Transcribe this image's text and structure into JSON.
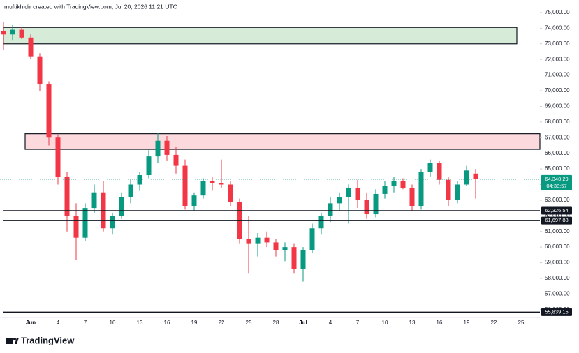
{
  "header": "muftikhidir created with TradingView.com, Jul 20, 2026 11:21 UTC",
  "footer": "TradingView",
  "chart_data": {
    "type": "candlestick",
    "categories": [
      null,
      null,
      null,
      "Jun",
      null,
      null,
      "4",
      null,
      null,
      "7",
      null,
      null,
      "10",
      null,
      null,
      "13",
      null,
      null,
      "16",
      null,
      null,
      "19",
      null,
      null,
      "22",
      null,
      null,
      "25",
      null,
      null,
      "28",
      null,
      null,
      "Jul",
      null,
      null,
      "4",
      null,
      null,
      "7",
      null,
      null,
      "10",
      null,
      null,
      "13",
      null,
      null,
      "16",
      null,
      null,
      "19",
      null,
      null,
      "22",
      null,
      null,
      "25"
    ],
    "open": [
      73800,
      73600,
      73900,
      73400,
      72200,
      70400,
      67000,
      64500,
      62000,
      60600,
      62500,
      63500,
      61200,
      62000,
      63200,
      64000,
      64600,
      65800,
      66800,
      65900,
      65200,
      62600,
      63300,
      64200,
      64100,
      64000,
      62900,
      60500,
      60200,
      60600,
      60300,
      59800,
      60000,
      58600,
      59800,
      61200,
      62000,
      62800,
      63200,
      63800,
      63000,
      62100,
      63400,
      63900,
      64200,
      63800,
      62600,
      64800,
      65400,
      64300,
      63000,
      64000,
      64700,
      null,
      null,
      null,
      null,
      null
    ],
    "high": [
      74400,
      74200,
      74100,
      73600,
      72400,
      70600,
      67200,
      64800,
      62800,
      62800,
      64000,
      64200,
      62200,
      63500,
      64300,
      64800,
      66200,
      67300,
      67100,
      66400,
      65600,
      63500,
      64400,
      64500,
      65600,
      64200,
      63100,
      62000,
      60900,
      61000,
      60500,
      60300,
      60200,
      60000,
      61500,
      62200,
      63200,
      63500,
      64000,
      64300,
      63500,
      63700,
      64200,
      64500,
      64400,
      64000,
      65000,
      65600,
      65500,
      64500,
      64200,
      65200,
      65000,
      null,
      null,
      null,
      null,
      null
    ],
    "low": [
      72600,
      73200,
      73300,
      72000,
      70000,
      66500,
      64000,
      61000,
      59200,
      60400,
      62200,
      61000,
      60800,
      61800,
      62800,
      63600,
      64400,
      65400,
      65500,
      64700,
      62400,
      62300,
      63100,
      63600,
      63800,
      62600,
      60200,
      58300,
      59400,
      60000,
      59400,
      59100,
      58300,
      57800,
      59600,
      60800,
      61600,
      62300,
      61500,
      62500,
      61800,
      61900,
      63100,
      63500,
      63700,
      62300,
      62400,
      64500,
      64000,
      62600,
      62800,
      63900,
      63100,
      null,
      null,
      null,
      null,
      null
    ],
    "close": [
      73600,
      73900,
      73400,
      72200,
      70400,
      67000,
      64500,
      62000,
      60600,
      62500,
      63500,
      61200,
      62000,
      63200,
      64000,
      64600,
      65800,
      66800,
      65900,
      65200,
      62600,
      63300,
      64200,
      64100,
      64000,
      62900,
      60500,
      60200,
      60600,
      60300,
      59800,
      60000,
      58600,
      59800,
      61200,
      62000,
      62800,
      63200,
      63800,
      63000,
      62100,
      63400,
      63900,
      64200,
      63800,
      62600,
      64800,
      65400,
      64300,
      63000,
      64000,
      64900,
      64340.29,
      null,
      null,
      null,
      null,
      null
    ],
    "up_color": "#089981",
    "down_color": "#f23645",
    "ylim": [
      55500,
      75800
    ],
    "yticks": [
      {
        "value": 56000,
        "label": "56,000.00"
      },
      {
        "value": 57000,
        "label": "57,000.00"
      },
      {
        "value": 58000,
        "label": "58,000.00"
      },
      {
        "value": 59000,
        "label": "59,000.00"
      },
      {
        "value": 60000,
        "label": "60,000.00"
      },
      {
        "value": 61000,
        "label": "61,000.00"
      },
      {
        "value": 62000,
        "label": "62,000.00"
      },
      {
        "value": 63000,
        "label": "63,000.00"
      },
      {
        "value": 64000,
        "label": "64,000.00"
      },
      {
        "value": 65000,
        "label": "65,000.00"
      },
      {
        "value": 66000,
        "label": "66,000.00"
      },
      {
        "value": 67000,
        "label": "67,000.00"
      },
      {
        "value": 68000,
        "label": "68,000.00"
      },
      {
        "value": 69000,
        "label": "69,000.00"
      },
      {
        "value": 70000,
        "label": "70,000.00"
      },
      {
        "value": 71000,
        "label": "71,000.00"
      },
      {
        "value": 72000,
        "label": "72,000.00"
      },
      {
        "value": 73000,
        "label": "73,000.00"
      },
      {
        "value": 74000,
        "label": "74,000.00"
      },
      {
        "value": 75000,
        "label": "75,000.00"
      }
    ],
    "zones": [
      {
        "low": 73000,
        "high": 74050,
        "color": "#d6ecd9"
      },
      {
        "low": 66250,
        "high": 67250,
        "color": "#fbd9dd"
      }
    ],
    "levels": [
      {
        "value": 62326.54,
        "label": "62,326.54"
      },
      {
        "value": 61697.88,
        "label": "61,697.88"
      },
      {
        "value": 55839.15,
        "label": "55,839.15"
      }
    ],
    "last_price": {
      "value": 64340.29,
      "label": "64,340.29"
    },
    "countdown": "04:38:57"
  }
}
